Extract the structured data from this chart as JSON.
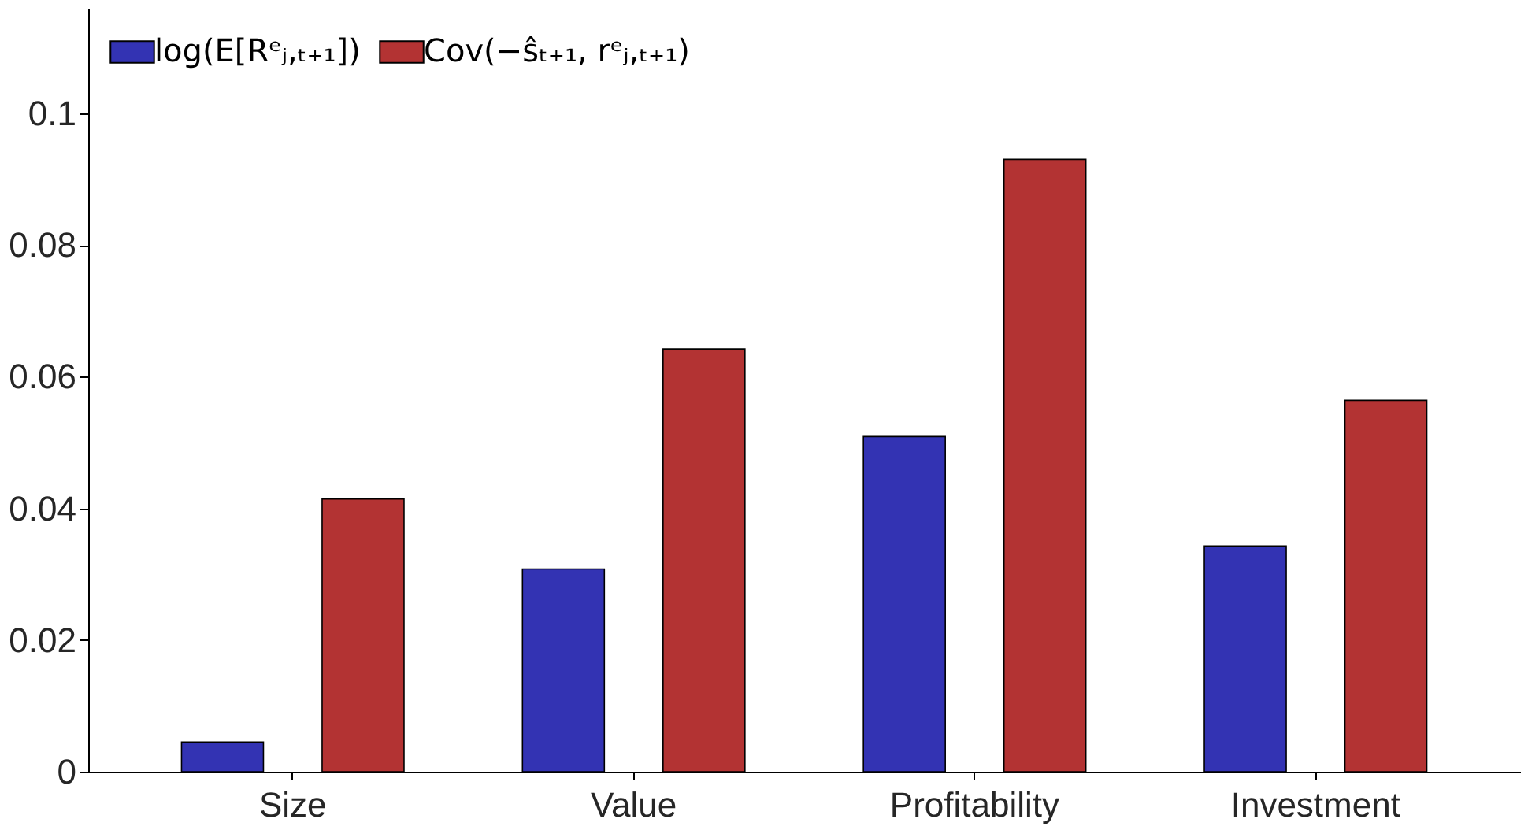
{
  "chart_data": {
    "type": "bar",
    "categories": [
      "Size",
      "Value",
      "Profitability",
      "Investment"
    ],
    "series": [
      {
        "name": "log(E[Rᵉⱼ,ₜ₊₁])",
        "color": "#3333b3",
        "values": [
          0.0045,
          0.0308,
          0.0509,
          0.0343
        ]
      },
      {
        "name": "Cov(−ŝₜ₊₁, rᵉⱼ,ₜ₊₁)",
        "color": "#b33333",
        "values": [
          0.0414,
          0.0642,
          0.093,
          0.0564
        ]
      }
    ],
    "ylim": [
      0,
      0.116
    ],
    "yticks": [
      0,
      0.02,
      0.04,
      0.06,
      0.08,
      0.1
    ],
    "grid": false,
    "legend": "top left"
  }
}
